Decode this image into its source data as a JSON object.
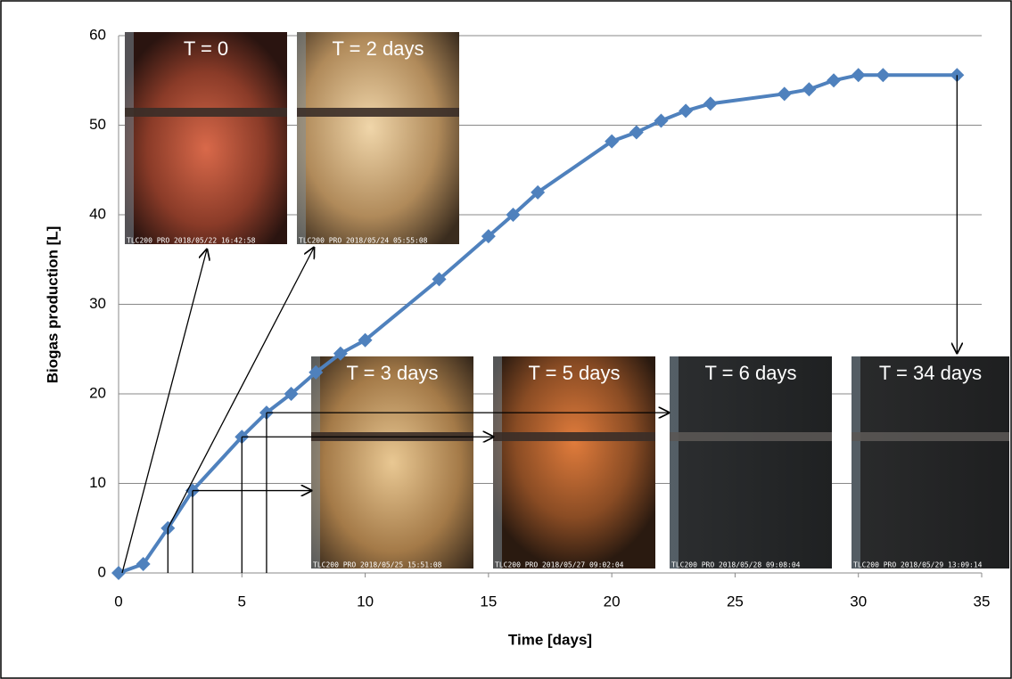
{
  "chart_data": {
    "type": "line",
    "x_label": "Time [days]",
    "y_label": "Biogas production [L]",
    "x": [
      0,
      1,
      2,
      3,
      5,
      6,
      7,
      8,
      9,
      10,
      13,
      15,
      16,
      17,
      20,
      21,
      22,
      23,
      24,
      27,
      28,
      29,
      30,
      31,
      34
    ],
    "series": [
      {
        "name": "Biogas",
        "color": "#4f81bd",
        "values": [
          0,
          1,
          5,
          9.2,
          15.2,
          17.9,
          20,
          22.4,
          24.5,
          26,
          32.8,
          37.6,
          40,
          42.5,
          48.2,
          49.2,
          50.5,
          51.6,
          52.4,
          53.5,
          54,
          55,
          55.6,
          55.6,
          55.6
        ]
      }
    ],
    "xlim": [
      0,
      35
    ],
    "xticks": [
      0,
      5,
      10,
      15,
      20,
      25,
      30,
      35
    ],
    "ylim": [
      0,
      60
    ],
    "yticks": [
      0,
      10,
      20,
      30,
      40,
      50,
      60
    ],
    "grid": true,
    "annotations": [
      {
        "label": "T = 0",
        "stamp": "TLC200 PRO 2018/05/22 16:42:58"
      },
      {
        "label": "T = 2 days",
        "stamp": "TLC200 PRO 2018/05/24 05:55:08"
      },
      {
        "label": "T = 3 days",
        "stamp": "TLC200 PRO 2018/05/25 15:51:08"
      },
      {
        "label": "T = 5 days",
        "stamp": "TLC200 PRO 2018/05/27 09:02:04"
      },
      {
        "label": "T = 6 days",
        "stamp": "TLC200 PRO 2018/05/28 09:08:04"
      },
      {
        "label": "T = 34 days",
        "stamp": "TLC200 PRO 2018/05/29 13:09:14"
      }
    ]
  }
}
